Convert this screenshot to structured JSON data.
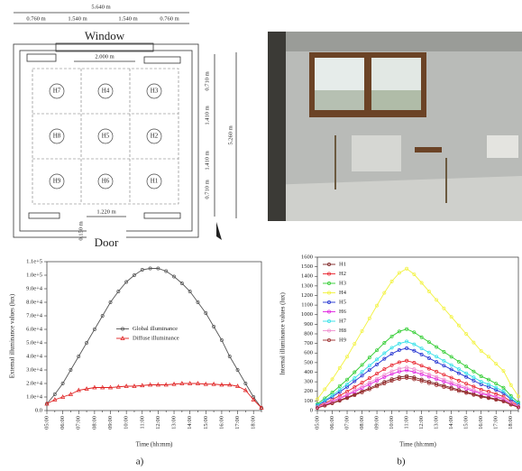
{
  "floor_plan": {
    "total_width": "5.640 m",
    "widths": [
      "0.760 m",
      "1.540 m",
      "1.540 m",
      "0.760 m"
    ],
    "window": "Window",
    "window_width": "2.000 m",
    "sensors": [
      "H7",
      "H4",
      "H3",
      "H8",
      "H5",
      "H2",
      "H9",
      "H6",
      "H1"
    ],
    "depths": [
      "0.710 m",
      "1.410 m",
      "1.410 m",
      "0.710 m"
    ],
    "total_depth": "5.260 m",
    "door_width": "1.220 m",
    "door_offset": "0.150 m",
    "door": "Door"
  },
  "captions": [
    "a)",
    "b)"
  ],
  "chart_data": [
    {
      "type": "line",
      "y_label": "External illuminance values (lux)",
      "x_label": "Time (hh:mm)",
      "categories": [
        "05:00",
        null,
        "06:00",
        null,
        "07:00",
        null,
        "08:00",
        null,
        "09:00",
        null,
        "10:00",
        null,
        "11:00",
        null,
        "12:00",
        null,
        "13:00",
        null,
        "14:00",
        null,
        "15:00",
        null,
        "16:00",
        null,
        "17:00",
        null,
        "18:00",
        null
      ],
      "ylim": [
        0,
        110000
      ],
      "yticks": [
        {
          "value": 0,
          "label": "0.0"
        },
        {
          "value": 10000,
          "label": "1.0e+4"
        },
        {
          "value": 20000,
          "label": "2.0e+4"
        },
        {
          "value": 30000,
          "label": "3.0e+4"
        },
        {
          "value": 40000,
          "label": "4.0e+4"
        },
        {
          "value": 50000,
          "label": "5.0e+4"
        },
        {
          "value": 60000,
          "label": "6.0e+4"
        },
        {
          "value": 70000,
          "label": "7.0e+4"
        },
        {
          "value": 80000,
          "label": "8.0e+4"
        },
        {
          "value": 90000,
          "label": "9.0e+4"
        },
        {
          "value": 100000,
          "label": "1.0e+5"
        },
        {
          "value": 110000,
          "label": "1.1e+5"
        }
      ],
      "grid": false,
      "legend": "center",
      "series": [
        {
          "name": "Global illuminance",
          "color": "#555555",
          "marker": "circle",
          "values": [
            5000,
            12000,
            20000,
            30000,
            40000,
            50000,
            60000,
            70000,
            80000,
            88000,
            95000,
            100000,
            104000,
            105000,
            105000,
            103000,
            99000,
            94000,
            88000,
            80000,
            72000,
            62000,
            52000,
            40000,
            30000,
            20000,
            10000,
            2000
          ]
        },
        {
          "name": "Diffuse illuminance",
          "color": "#e02020",
          "marker": "triangle",
          "values": [
            5000,
            8000,
            10000,
            12000,
            15000,
            16000,
            17000,
            17000,
            17000,
            17500,
            18000,
            18000,
            18500,
            19000,
            19000,
            19000,
            19500,
            20000,
            20000,
            20000,
            19500,
            19500,
            19000,
            19000,
            18000,
            15000,
            8000,
            2000
          ]
        }
      ]
    },
    {
      "type": "line",
      "y_label": "Internal illuminance values (lux)",
      "x_label": "Time (hh:mm)",
      "categories": [
        "05:00",
        null,
        "06:00",
        null,
        "07:00",
        null,
        "08:00",
        null,
        "09:00",
        null,
        "10:00",
        null,
        "11:00",
        null,
        "12:00",
        null,
        "13:00",
        null,
        "14:00",
        null,
        "15:00",
        null,
        "16:00",
        null,
        "17:00",
        null,
        "18:00",
        null
      ],
      "ylim": [
        0,
        1600
      ],
      "yticks": [
        0,
        100,
        200,
        300,
        400,
        500,
        600,
        700,
        800,
        900,
        1000,
        1100,
        1200,
        1300,
        1400,
        1500,
        1600
      ],
      "grid": false,
      "legend": "upper left",
      "series": [
        {
          "name": "H1",
          "color": "#7a1f1f",
          "marker": "circle",
          "values": [
            29,
            54,
            79,
            108,
            137,
            169,
            202,
            234,
            266,
            299,
            328,
            349,
            360,
            346,
            324,
            302,
            281,
            259,
            238,
            216,
            194,
            173,
            151,
            137,
            119,
            101,
            65,
            36
          ]
        },
        {
          "name": "H2",
          "color": "#e8202a",
          "marker": "circle",
          "values": [
            42,
            78,
            114,
            156,
            198,
            244,
            291,
            338,
            385,
            432,
            473,
            504,
            520,
            499,
            468,
            437,
            406,
            374,
            343,
            312,
            281,
            250,
            218,
            198,
            172,
            146,
            94,
            52
          ]
        },
        {
          "name": "H3",
          "color": "#2ecc2e",
          "marker": "circle",
          "values": [
            68,
            128,
            187,
            255,
            323,
            400,
            476,
            553,
            629,
            706,
            774,
            825,
            850,
            816,
            765,
            714,
            663,
            612,
            561,
            510,
            459,
            408,
            357,
            323,
            281,
            238,
            153,
            85
          ]
        },
        {
          "name": "H4",
          "color": "#f2f23a",
          "marker": "circle",
          "values": [
            118,
            222,
            326,
            444,
            562,
            696,
            829,
            962,
            1095,
            1228,
            1347,
            1436,
            1480,
            1421,
            1332,
            1243,
            1154,
            1066,
            977,
            888,
            799,
            710,
            622,
            562,
            488,
            414,
            266,
            148
          ]
        },
        {
          "name": "H5",
          "color": "#2030d0",
          "marker": "circle",
          "values": [
            52,
            98,
            143,
            195,
            247,
            306,
            364,
            423,
            481,
            540,
            592,
            631,
            650,
            624,
            585,
            546,
            507,
            468,
            429,
            390,
            351,
            312,
            273,
            247,
            215,
            182,
            117,
            65
          ]
        },
        {
          "name": "H6",
          "color": "#e020e0",
          "marker": "circle",
          "values": [
            34,
            63,
            92,
            126,
            160,
            197,
            235,
            273,
            311,
            349,
            382,
            407,
            420,
            403,
            378,
            353,
            328,
            302,
            277,
            252,
            227,
            202,
            176,
            160,
            139,
            118,
            76,
            42
          ]
        },
        {
          "name": "H7",
          "color": "#30e0e8",
          "marker": "circle",
          "values": [
            58,
            108,
            158,
            216,
            274,
            338,
            403,
            468,
            533,
            598,
            655,
            698,
            720,
            691,
            648,
            605,
            562,
            518,
            475,
            432,
            389,
            346,
            302,
            274,
            238,
            202,
            130,
            72
          ]
        },
        {
          "name": "H8",
          "color": "#f090d0",
          "marker": "circle",
          "values": [
            36,
            68,
            99,
            135,
            171,
            212,
            252,
            293,
            333,
            374,
            410,
            437,
            450,
            432,
            405,
            378,
            351,
            324,
            297,
            270,
            243,
            216,
            189,
            171,
            149,
            126,
            81,
            45
          ]
        },
        {
          "name": "H9",
          "color": "#9a2a2a",
          "marker": "circle",
          "values": [
            27,
            51,
            75,
            102,
            129,
            160,
            190,
            221,
            252,
            282,
            309,
            330,
            340,
            326,
            306,
            286,
            265,
            245,
            224,
            204,
            184,
            163,
            143,
            129,
            112,
            95,
            61,
            34
          ]
        }
      ]
    }
  ]
}
